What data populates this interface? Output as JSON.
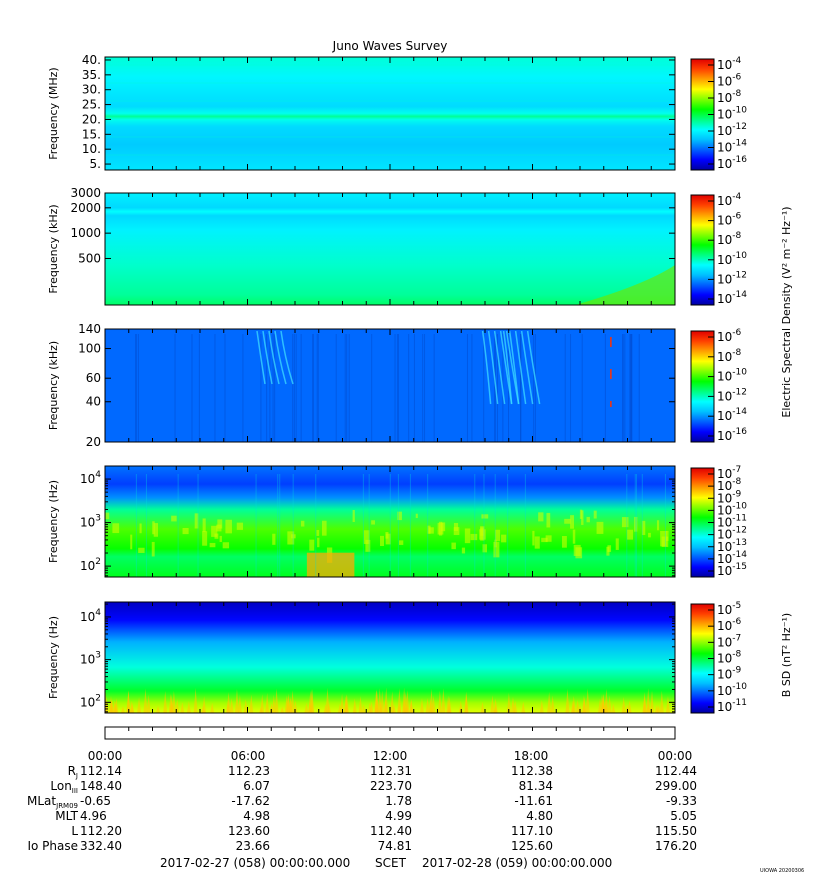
{
  "title": "Juno Waves Survey",
  "panels": [
    {
      "ylabel": "Frequency (MHz)",
      "yticks": [
        "40.",
        "35.",
        "30.",
        "25.",
        "20.",
        "15.",
        "10.",
        "5."
      ],
      "cbticks": [
        "-4",
        "-6",
        "-8",
        "-10",
        "-12",
        "-14",
        "-16"
      ]
    },
    {
      "ylabel": "Frequency (kHz)",
      "yticks": [
        "3000",
        "2000",
        "1000",
        "500"
      ],
      "cbticks": [
        "-4",
        "-6",
        "-8",
        "-10",
        "-12",
        "-14"
      ]
    },
    {
      "ylabel": "Frequency (kHz)",
      "yticks": [
        "140",
        "100",
        "60",
        "40",
        "20"
      ],
      "cbticks": [
        "-6",
        "-8",
        "-10",
        "-12",
        "-14",
        "-16"
      ]
    },
    {
      "ylabel": "Frequency (Hz)",
      "yticks": [
        "4",
        "3",
        "2"
      ],
      "cbticks": [
        "-7",
        "-8",
        "-9",
        "-10",
        "-11",
        "-12",
        "-13",
        "-14",
        "-15"
      ]
    },
    {
      "ylabel": "Frequency (Hz)",
      "yticks": [
        "4",
        "3",
        "2"
      ],
      "cbticks": [
        "-5",
        "-6",
        "-7",
        "-8",
        "-9",
        "-10",
        "-11"
      ]
    }
  ],
  "cb_base": "10",
  "colorbar_label_electric": "Electric Spectral Density (V² m⁻² Hz⁻¹)",
  "colorbar_label_magnetic": "B SD (nT² Hz⁻¹)",
  "ephemeris": {
    "times": [
      "00:00",
      "06:00",
      "12:00",
      "18:00",
      "00:00"
    ],
    "rows": [
      {
        "label": "R",
        "sub": "J",
        "values": [
          "112.14",
          "112.23",
          "112.31",
          "112.38",
          "112.44"
        ]
      },
      {
        "label": "Lon",
        "sub": "III",
        "values": [
          "148.40",
          "6.07",
          "223.70",
          "81.34",
          "299.00"
        ]
      },
      {
        "label": "MLat",
        "sub": "JRM09",
        "values": [
          "-0.65",
          "-17.62",
          "1.78",
          "-11.61",
          "-9.33"
        ]
      },
      {
        "label": "MLT",
        "sub": "",
        "values": [
          "4.96",
          "4.98",
          "4.99",
          "4.80",
          "5.05"
        ]
      },
      {
        "label": "L",
        "sub": "",
        "values": [
          "112.20",
          "123.60",
          "112.40",
          "117.10",
          "115.50"
        ]
      },
      {
        "label": "Io Phase",
        "sub": "",
        "values": [
          "332.40",
          "23.66",
          "74.81",
          "125.60",
          "176.20"
        ]
      }
    ]
  },
  "footer": {
    "start": "2017-02-27 (058) 00:00:00.000",
    "scet": "SCET",
    "end": "2017-02-28 (059) 00:00:00.000"
  },
  "stamp": "UIOWA 20200306",
  "colors": {
    "colormap": [
      "#0000a0",
      "#0000ff",
      "#0060ff",
      "#00c0ff",
      "#00ffff",
      "#00ff80",
      "#00ff00",
      "#80ff00",
      "#ffff00",
      "#ffa000",
      "#ff4000",
      "#e00000"
    ]
  },
  "chart_data": {
    "type": "heatmap",
    "title": "Juno Waves Survey",
    "x_range": [
      "2017-02-27 00:00",
      "2017-02-28 00:00"
    ],
    "x_ticks": [
      "00:00",
      "06:00",
      "12:00",
      "18:00",
      "00:00"
    ],
    "panels": [
      {
        "ylabel": "Frequency (MHz)",
        "yscale": "linear",
        "ylim_MHz": [
          3,
          41
        ],
        "colorbar_range_log10": [
          -16.5,
          -4
        ],
        "background_log10": -12,
        "bands": [
          {
            "freq_MHz": 21,
            "log10": -11
          }
        ]
      },
      {
        "ylabel": "Frequency (kHz)",
        "yscale": "log",
        "ylim_kHz": [
          140,
          3000
        ],
        "colorbar_range_log10": [
          -15,
          -4
        ],
        "background_log10": -11,
        "bands": [
          {
            "freq_kHz": 1800,
            "log10": -11
          },
          {
            "freq_kHz": 1100,
            "log10": -11
          }
        ]
      },
      {
        "ylabel": "Frequency (kHz)",
        "yscale": "log",
        "ylim_kHz": [
          20,
          140
        ],
        "colorbar_range_log10": [
          -16.5,
          -6
        ],
        "background_log10": -14.5,
        "bursts_hours": [
          6.4,
          15.9,
          16.7
        ],
        "spike_hour": 21.3
      },
      {
        "ylabel": "Frequency (Hz)",
        "yscale": "log",
        "ylim_log10_Hz": [
          1.75,
          4.3
        ],
        "colorbar_range_log10": [
          -15,
          -7
        ],
        "band_log10_Hz": [
          2.4,
          3.3
        ],
        "band_log10": -10.5,
        "enhanced_hours": [
          8.5,
          10.5
        ]
      },
      {
        "ylabel": "Frequency (Hz)",
        "yscale": "log",
        "ylim_log10_Hz": [
          1.75,
          4.35
        ],
        "colorbar_range_log10": [
          -11,
          -4.8
        ],
        "low_freq_log10": -7,
        "high_freq_log10": -10.5
      }
    ]
  }
}
